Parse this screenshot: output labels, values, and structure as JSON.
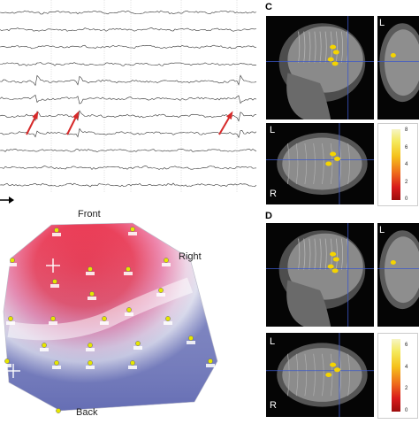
{
  "panels": {
    "c_label": "C",
    "d_label": "D"
  },
  "topomap": {
    "front": "Front",
    "right": "Right",
    "back": "Back"
  },
  "mri": {
    "l_marker": "L",
    "r_marker": "R"
  },
  "colorbar_c": {
    "ticks": [
      "8",
      "6",
      "4",
      "2",
      "0"
    ]
  },
  "colorbar_d": {
    "ticks": [
      "6",
      "4",
      "2",
      "0"
    ]
  },
  "colors": {
    "spike_arrow": "#d62a2a",
    "activation_yellow": "#f5d400",
    "topomap_red": "#e8253f",
    "topomap_blue": "#6c74b8",
    "mri_crosshair": "#3b57c9"
  },
  "eeg": {
    "channel_count": 11,
    "spike_markers": 3
  }
}
